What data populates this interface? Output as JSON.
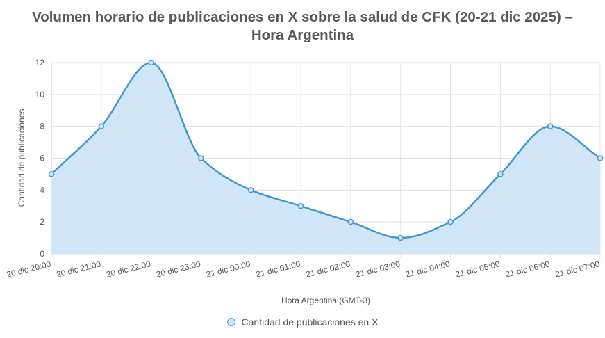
{
  "chart_data": {
    "type": "area",
    "title_lines": [
      "Volumen horario de publicaciones en X sobre la salud de CFK (20-21 dic 2025) –",
      "Hora Argentina"
    ],
    "xlabel": "Hora Argentina (GMT-3)",
    "ylabel": "Cantidad de publicaciones",
    "categories": [
      "20 dic 20:00",
      "20 dic 21:00",
      "20 dic 22:00",
      "20 dic 23:00",
      "21 dic 00:00",
      "21 dic 01:00",
      "21 dic 02:00",
      "21 dic 03:00",
      "21 dic 04:00",
      "21 dic 05:00",
      "21 dic 06:00",
      "21 dic 07:00"
    ],
    "series": [
      {
        "name": "Cantidad de publicaciones en X",
        "values": [
          5,
          8,
          12,
          6,
          4,
          3,
          2,
          1,
          2,
          5,
          8,
          6
        ]
      }
    ],
    "ylim": [
      0,
      12
    ],
    "yticks": [
      0,
      2,
      4,
      6,
      8,
      10,
      12
    ],
    "grid": true,
    "smooth": true,
    "legend_position": "bottom",
    "colors": {
      "line": "#3d98d3",
      "fill": "#cfe5f6",
      "grid": "#e3e3e3"
    }
  }
}
